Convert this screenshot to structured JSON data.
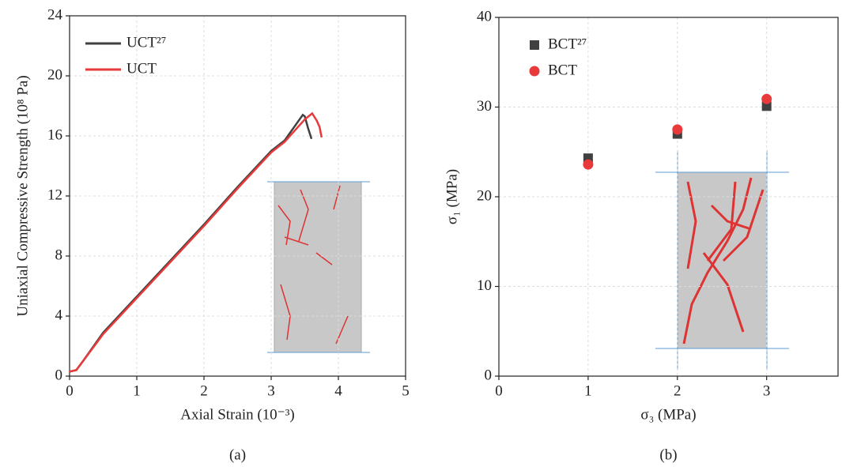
{
  "chart_data": [
    {
      "type": "line",
      "xlabel": "Axial Strain (10⁻³)",
      "ylabel": "Uniaxial Compressive Strength (10⁸ Pa)",
      "caption": "(a)",
      "xlim": [
        0,
        5
      ],
      "ylim": [
        0,
        24
      ],
      "xticks": [
        0,
        1,
        2,
        3,
        4,
        5
      ],
      "yticks": [
        0,
        4,
        8,
        12,
        16,
        20,
        24
      ],
      "grid": true,
      "legend": "upper left",
      "series": [
        {
          "name": "UCT²⁷",
          "color": "#404040",
          "x": [
            0,
            0.1,
            0.2,
            0.5,
            1,
            1.5,
            2,
            2.5,
            3,
            3.2,
            3.47,
            3.5,
            3.55,
            3.6
          ],
          "values": [
            0.3,
            0.4,
            1.0,
            2.9,
            5.3,
            7.7,
            10.1,
            12.6,
            15.0,
            15.7,
            17.4,
            17.3,
            16.5,
            15.8
          ]
        },
        {
          "name": "UCT",
          "color": "#e83a3a",
          "x": [
            0,
            0.1,
            0.2,
            0.5,
            1,
            1.5,
            2,
            2.5,
            3,
            3.2,
            3.4,
            3.5,
            3.61,
            3.68,
            3.72,
            3.75
          ],
          "values": [
            0.3,
            0.4,
            1.0,
            2.8,
            5.2,
            7.6,
            10.0,
            12.5,
            14.9,
            15.6,
            16.6,
            17.1,
            17.5,
            17.0,
            16.6,
            15.9
          ]
        }
      ]
    },
    {
      "type": "scatter",
      "xlabel": "σ₃ (MPa)",
      "ylabel": "σ₁ (MPa)",
      "caption": "(b)",
      "xlim": [
        0,
        3.8
      ],
      "ylim": [
        0,
        40
      ],
      "xticks": [
        0,
        1,
        2,
        3
      ],
      "yticks": [
        0,
        10,
        20,
        30,
        40
      ],
      "grid": true,
      "legend": "upper left",
      "series": [
        {
          "name": "BCT²⁷",
          "color": "#404040",
          "marker": "square",
          "x": [
            1,
            2,
            3
          ],
          "values": [
            24.3,
            27.0,
            30.1
          ]
        },
        {
          "name": "BCT",
          "color": "#e83a3a",
          "marker": "circle",
          "x": [
            1,
            2,
            3
          ],
          "values": [
            23.6,
            27.5,
            30.9
          ]
        }
      ]
    }
  ]
}
